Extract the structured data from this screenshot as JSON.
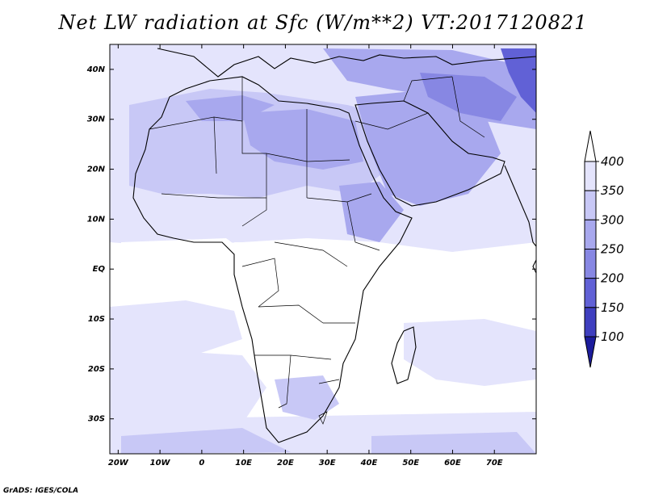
{
  "title": "Net LW radiation at Sfc (W/m**2) VT:2017120821",
  "credit": "GrADS: IGES/COLA",
  "map": {
    "lon_range": [
      -22,
      80
    ],
    "lat_range": [
      -37,
      45
    ],
    "lon_ticks": [
      {
        "value": -20,
        "label": "20W"
      },
      {
        "value": -10,
        "label": "10W"
      },
      {
        "value": 0,
        "label": "0"
      },
      {
        "value": 10,
        "label": "10E"
      },
      {
        "value": 20,
        "label": "20E"
      },
      {
        "value": 30,
        "label": "30E"
      },
      {
        "value": 40,
        "label": "40E"
      },
      {
        "value": 50,
        "label": "50E"
      },
      {
        "value": 60,
        "label": "60E"
      },
      {
        "value": 70,
        "label": "70E"
      }
    ],
    "lat_ticks": [
      {
        "value": 40,
        "label": "40N"
      },
      {
        "value": 30,
        "label": "30N"
      },
      {
        "value": 20,
        "label": "20N"
      },
      {
        "value": 10,
        "label": "10N"
      },
      {
        "value": 0,
        "label": "EQ"
      },
      {
        "value": -10,
        "label": "10S"
      },
      {
        "value": -20,
        "label": "20S"
      },
      {
        "value": -30,
        "label": "30S"
      }
    ]
  },
  "colorbar": {
    "levels": [
      "400",
      "350",
      "300",
      "250",
      "200",
      "150",
      "100"
    ],
    "colors": [
      "#ffffff",
      "#e4e4fc",
      "#c8c8f6",
      "#a8a8ee",
      "#8787e3",
      "#6161d6",
      "#3f3fbf",
      "#1c1c9c"
    ]
  }
}
